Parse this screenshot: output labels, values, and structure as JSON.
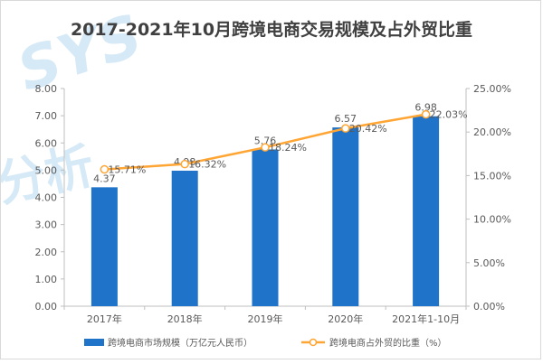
{
  "watermark": {
    "brand": "SYS",
    "label": "分析"
  },
  "chart_data": {
    "type": "bar+line",
    "title": "2017-2021年10月跨境电商交易规模及占外贸比重",
    "categories": [
      "2017年",
      "2018年",
      "2019年",
      "2020年",
      "2021年1-10月"
    ],
    "series": [
      {
        "name": "跨境电商市场规模（万亿元人民币）",
        "type": "bar",
        "axis": "left",
        "values": [
          4.37,
          4.98,
          5.76,
          6.57,
          6.98
        ],
        "value_labels": [
          "4.37",
          "4.98",
          "5.76",
          "6.57",
          "6.98"
        ]
      },
      {
        "name": "跨境电商占外贸的比重（%）",
        "type": "line",
        "axis": "right",
        "values": [
          15.71,
          16.32,
          18.24,
          20.42,
          22.03
        ],
        "value_labels": [
          "15.71%",
          "16.32%",
          "18.24%",
          "20.42%",
          "22.03%"
        ]
      }
    ],
    "y_left": {
      "min": 0,
      "max": 8,
      "step": 1,
      "tick_labels": [
        "0.00",
        "1.00",
        "2.00",
        "3.00",
        "4.00",
        "5.00",
        "6.00",
        "7.00",
        "8.00"
      ]
    },
    "y_right": {
      "min": 0,
      "max": 25,
      "step": 5,
      "tick_labels": [
        "0.00%",
        "5.00%",
        "10.00%",
        "15.00%",
        "20.00%",
        "25.00%"
      ]
    },
    "grid": false,
    "legend_position": "bottom",
    "colors": {
      "bar": "#1f73c8",
      "line": "#ffa534",
      "marker_fill": "#ffffff",
      "axis": "#bfbfbf",
      "text": "#595959",
      "title": "#404040",
      "watermark": "#d5e9f7"
    }
  }
}
